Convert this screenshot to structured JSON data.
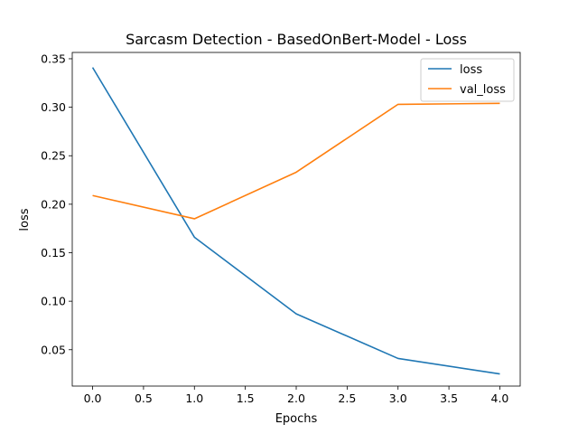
{
  "chart_data": {
    "type": "line",
    "title": "Sarcasm Detection - BasedOnBert-Model - Loss",
    "xlabel": "Epochs",
    "ylabel": "loss",
    "x": [
      0,
      1,
      2,
      3,
      4
    ],
    "xlim": [
      -0.2,
      4.2
    ],
    "ylim": [
      0.0125,
      0.3565
    ],
    "xticks": [
      0.0,
      0.5,
      1.0,
      1.5,
      2.0,
      2.5,
      3.0,
      3.5,
      4.0
    ],
    "xtick_labels": [
      "0.0",
      "0.5",
      "1.0",
      "1.5",
      "2.0",
      "2.5",
      "3.0",
      "3.5",
      "4.0"
    ],
    "yticks": [
      0.05,
      0.1,
      0.15,
      0.2,
      0.25,
      0.3,
      0.35
    ],
    "ytick_labels": [
      "0.05",
      "0.10",
      "0.15",
      "0.20",
      "0.25",
      "0.30",
      "0.35"
    ],
    "grid": false,
    "legend": "top-right",
    "series": [
      {
        "name": "loss",
        "color": "#1f77b4",
        "values": [
          0.341,
          0.166,
          0.087,
          0.041,
          0.025
        ]
      },
      {
        "name": "val_loss",
        "color": "#ff7f0e",
        "values": [
          0.209,
          0.185,
          0.233,
          0.303,
          0.304
        ]
      }
    ]
  }
}
